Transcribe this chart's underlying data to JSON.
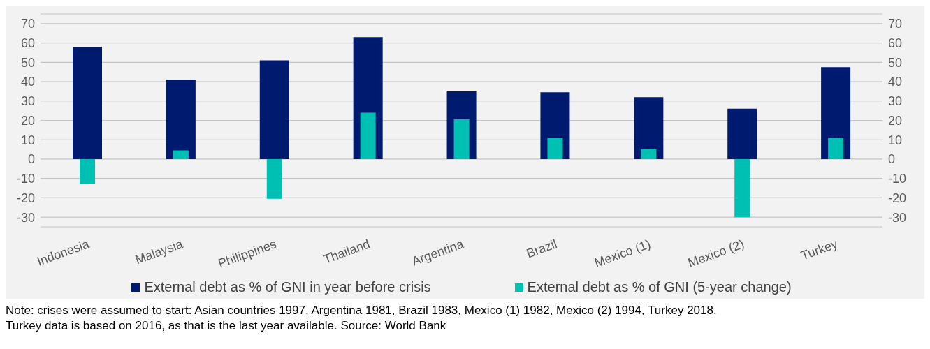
{
  "chart_data": {
    "type": "bar",
    "categories": [
      "Indonesia",
      "Malaysia",
      "Philippines",
      "Thailand",
      "Argentina",
      "Brazil",
      "Mexico (1)",
      "Mexico (2)",
      "Turkey"
    ],
    "series": [
      {
        "name": "External debt as % of GNI in year before crisis",
        "color": "#001a70",
        "values": [
          58,
          41,
          51,
          63,
          35,
          34.5,
          32,
          26,
          47.5
        ]
      },
      {
        "name": "External debt as % of GNI (5-year change)",
        "color": "#00bfb3",
        "values": [
          -13,
          4.5,
          -20.5,
          24,
          20.5,
          11,
          5,
          -30,
          11
        ]
      }
    ],
    "ylim": [
      -35,
      75
    ],
    "yticks": [
      -30,
      -20,
      -10,
      0,
      10,
      20,
      30,
      40,
      50,
      60,
      70
    ],
    "y2lim": [
      -35,
      75
    ],
    "y2ticks": [
      -30,
      -20,
      -10,
      0,
      10,
      20,
      30,
      40,
      50,
      60,
      70
    ],
    "grid": "y",
    "legend": "bottom",
    "annotations": [
      "Note: crises were assumed to start: Asian countries 1997, Argentina 1981, Brazil 1983, Mexico (1) 1982, Mexico (2) 1994, Turkey 2018.",
      "Turkey data is based on 2016, as that is the last year available. Source: World Bank"
    ]
  }
}
